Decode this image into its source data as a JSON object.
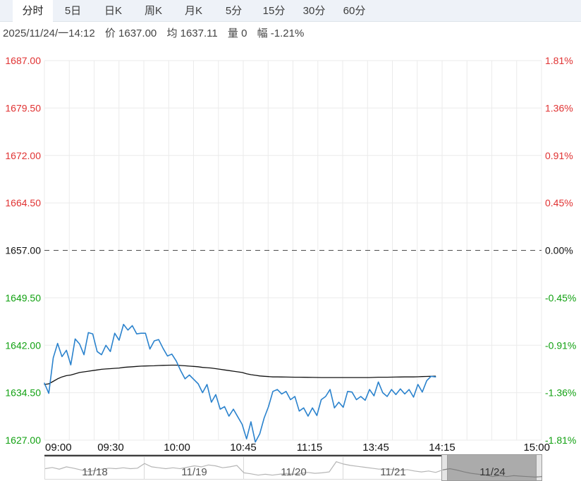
{
  "tabs": {
    "items": [
      {
        "label": "分时",
        "active": true
      },
      {
        "label": "5日",
        "active": false
      },
      {
        "label": "日K",
        "active": false
      },
      {
        "label": "周K",
        "active": false
      },
      {
        "label": "月K",
        "active": false
      },
      {
        "label": "5分",
        "active": false
      },
      {
        "label": "15分",
        "active": false
      },
      {
        "label": "30分",
        "active": false
      },
      {
        "label": "60分",
        "active": false
      }
    ]
  },
  "info": {
    "datetime": "2025/11/24/一14:12",
    "price_label": "价",
    "price": "1637.00",
    "avg_label": "均",
    "avg": "1637.11",
    "volume_label": "量",
    "volume": "0",
    "change_label": "幅",
    "change": "-1.21%"
  },
  "chart_data": {
    "type": "line",
    "title": "",
    "xlabel": "",
    "ylabel": "",
    "baseline": 1657.0,
    "ylim": [
      1627,
      1687
    ],
    "grid": true,
    "y_left_ticks": [
      "1687.00",
      "1679.50",
      "1672.00",
      "1664.50",
      "1657.00",
      "1649.50",
      "1642.00",
      "1634.50",
      "1627.00"
    ],
    "y_right_ticks": [
      "1.81%",
      "1.36%",
      "0.91%",
      "0.45%",
      "0.00%",
      "-0.45%",
      "-0.91%",
      "-1.36%",
      "-1.81%"
    ],
    "x_ticks": [
      {
        "label": "09:00",
        "pos": 0
      },
      {
        "label": "09:30",
        "pos": 0.1333
      },
      {
        "label": "10:00",
        "pos": 0.2667
      },
      {
        "label": "10:45",
        "pos": 0.4
      },
      {
        "label": "11:15",
        "pos": 0.5333
      },
      {
        "label": "13:45",
        "pos": 0.6667
      },
      {
        "label": "14:15",
        "pos": 0.8
      },
      {
        "label": "15:00",
        "pos": 1
      }
    ],
    "x_end_fraction": 0.7867,
    "last_time": "14:12",
    "colors": {
      "up": "#e03232",
      "down": "#12a112",
      "neutral": "#111111",
      "grid": "#ebebeb",
      "baseline_line": "#4d4d4d",
      "separator": "#3f3f3f"
    },
    "series": [
      {
        "name": "均价",
        "color": "#111111",
        "width": 1.3,
        "values": [
          1635.8,
          1635.9,
          1636.3,
          1636.7,
          1637.0,
          1637.2,
          1637.3,
          1637.5,
          1637.7,
          1637.8,
          1637.9,
          1638.0,
          1638.1,
          1638.2,
          1638.25,
          1638.3,
          1638.35,
          1638.4,
          1638.5,
          1638.55,
          1638.6,
          1638.65,
          1638.7,
          1638.72,
          1638.74,
          1638.76,
          1638.8,
          1638.82,
          1638.84,
          1638.85,
          1638.85,
          1638.8,
          1638.75,
          1638.7,
          1638.65,
          1638.6,
          1638.5,
          1638.45,
          1638.4,
          1638.3,
          1638.2,
          1638.1,
          1638.0,
          1637.9,
          1637.8,
          1637.7,
          1637.5,
          1637.35,
          1637.25,
          1637.15,
          1637.1,
          1637.05,
          1637.0,
          1637.0,
          1636.98,
          1636.97,
          1636.96,
          1636.95,
          1636.95,
          1636.94,
          1636.93,
          1636.92,
          1636.91,
          1636.9,
          1636.9,
          1636.9,
          1636.9,
          1636.9,
          1636.9,
          1636.9,
          1636.9,
          1636.9,
          1636.9,
          1636.9,
          1636.9,
          1636.92,
          1636.95,
          1636.95,
          1636.95,
          1636.96,
          1636.97,
          1636.98,
          1637.0,
          1637.0,
          1637.0,
          1637.02,
          1637.05,
          1637.07,
          1637.1,
          1637.11
        ]
      },
      {
        "name": "价格",
        "color": "#2a82cd",
        "width": 1.6,
        "values": [
          1636.0,
          1634.4,
          1640.0,
          1642.3,
          1640.2,
          1641.2,
          1638.9,
          1643.0,
          1642.2,
          1640.5,
          1644.0,
          1643.8,
          1641.0,
          1640.5,
          1642.0,
          1641.0,
          1643.9,
          1642.8,
          1645.3,
          1644.4,
          1645.1,
          1643.8,
          1643.9,
          1643.9,
          1641.4,
          1642.7,
          1642.9,
          1641.5,
          1640.3,
          1640.6,
          1639.5,
          1638.0,
          1636.7,
          1637.3,
          1636.6,
          1635.9,
          1634.5,
          1635.8,
          1633.0,
          1634.2,
          1631.9,
          1632.3,
          1630.8,
          1631.9,
          1630.7,
          1629.5,
          1627.2,
          1629.9,
          1626.7,
          1628.0,
          1630.5,
          1632.3,
          1634.7,
          1635.0,
          1634.3,
          1634.7,
          1633.4,
          1633.9,
          1631.6,
          1632.1,
          1630.8,
          1632.1,
          1630.9,
          1633.4,
          1633.9,
          1635.0,
          1632.1,
          1633.0,
          1632.2,
          1634.7,
          1634.6,
          1633.4,
          1633.9,
          1633.3,
          1635.0,
          1634.0,
          1636.2,
          1634.5,
          1633.9,
          1635.0,
          1634.2,
          1635.1,
          1634.3,
          1635.0,
          1633.8,
          1635.8,
          1634.6,
          1636.4,
          1637.1,
          1637.0
        ]
      }
    ],
    "navigator": {
      "sections": [
        {
          "label": "11/18",
          "selected": false
        },
        {
          "label": "11/19",
          "selected": false
        },
        {
          "label": "11/20",
          "selected": false
        },
        {
          "label": "11/21",
          "selected": false
        },
        {
          "label": "11/24",
          "selected": true
        }
      ],
      "spark_color": "#b5b5b5",
      "spark_selected_color": "#7f7f7f",
      "spark": [
        0.5,
        0.45,
        0.52,
        0.42,
        0.48,
        0.55,
        0.62,
        0.58,
        0.52,
        0.48,
        0.5,
        0.46,
        0.5,
        0.48,
        0.28,
        0.42,
        0.46,
        0.5,
        0.46,
        0.5,
        0.44,
        0.38,
        0.42,
        0.34,
        0.38,
        0.46,
        0.42,
        0.36,
        0.68,
        0.72,
        0.78,
        0.74,
        0.78,
        0.74,
        0.7,
        0.74,
        0.7,
        0.66,
        0.7,
        0.68,
        0.64,
        0.2,
        0.3,
        0.36,
        0.4,
        0.44,
        0.48,
        0.52,
        0.5,
        0.54,
        0.58,
        0.54,
        0.6,
        0.64,
        0.6,
        0.66,
        0.55,
        0.5,
        0.56,
        0.64,
        0.7,
        0.74,
        0.78,
        0.84,
        0.8,
        0.84,
        0.8,
        0.82,
        0.84,
        0.86,
        0.84
      ]
    }
  }
}
